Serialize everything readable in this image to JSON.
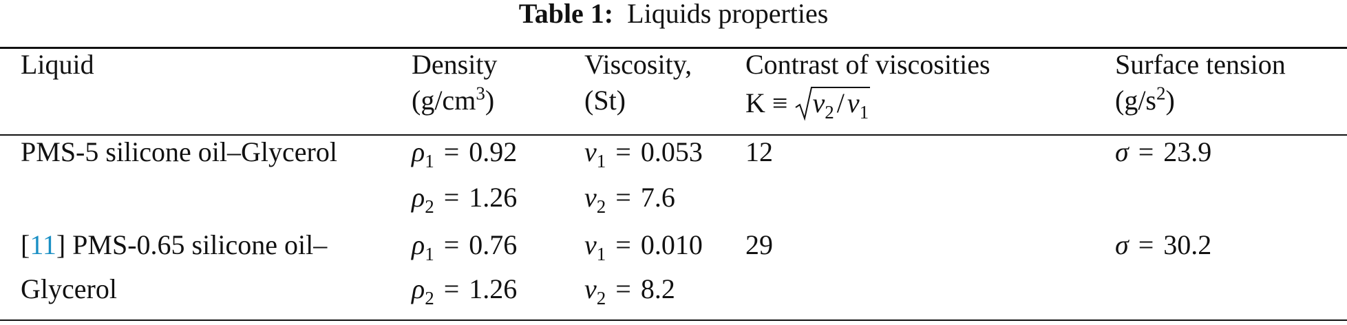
{
  "caption": {
    "label": "Table 1:",
    "text": "Liquids properties"
  },
  "table": {
    "headers": [
      {
        "line1": "Liquid"
      },
      {
        "line1": "Density",
        "line2": "(g/cm",
        "line2_sup": "3",
        "line2_end": ")"
      },
      {
        "line1": "Viscosity,",
        "line2": "(St)"
      },
      {
        "line1": "Contrast of viscosities",
        "line2": "K ≡",
        "sqrt": {
          "num_var": "v",
          "num_sub": "2",
          "slash": "/",
          "den_var": "v",
          "den_sub": "1"
        }
      },
      {
        "line1": "Surface tension",
        "line2": "(g/s",
        "line2_sup": "2",
        "line2_end": ")"
      }
    ],
    "rows": [
      {
        "liquid_lines": [
          "PMS-5 silicone oil–Glycerol"
        ],
        "density": [
          {
            "var": "ρ",
            "sub": "1",
            "op": "=",
            "value": "0.92"
          },
          {
            "var": "ρ",
            "sub": "2",
            "op": "=",
            "value": "1.26"
          }
        ],
        "viscosity": [
          {
            "var": "v",
            "sub": "1",
            "op": "=",
            "value": "0.053"
          },
          {
            "var": "v",
            "sub": "2",
            "op": "=",
            "value": "7.6"
          }
        ],
        "contrast": "12",
        "tension": {
          "var": "σ",
          "op": "=",
          "value": "23.9"
        }
      },
      {
        "ref": {
          "open": "[",
          "number": "11",
          "close": "]"
        },
        "liquid_lines": [
          "PMS-0.65 silicone oil–",
          "Glycerol"
        ],
        "density": [
          {
            "var": "ρ",
            "sub": "1",
            "op": "=",
            "value": "0.76"
          },
          {
            "var": "ρ",
            "sub": "2",
            "op": "=",
            "value": "1.26"
          }
        ],
        "viscosity": [
          {
            "var": "v",
            "sub": "1",
            "op": "=",
            "value": "0.010"
          },
          {
            "var": "v",
            "sub": "2",
            "op": "=",
            "value": "8.2"
          }
        ],
        "contrast": "29",
        "tension": {
          "var": "σ",
          "op": "=",
          "value": "30.2"
        }
      }
    ]
  }
}
